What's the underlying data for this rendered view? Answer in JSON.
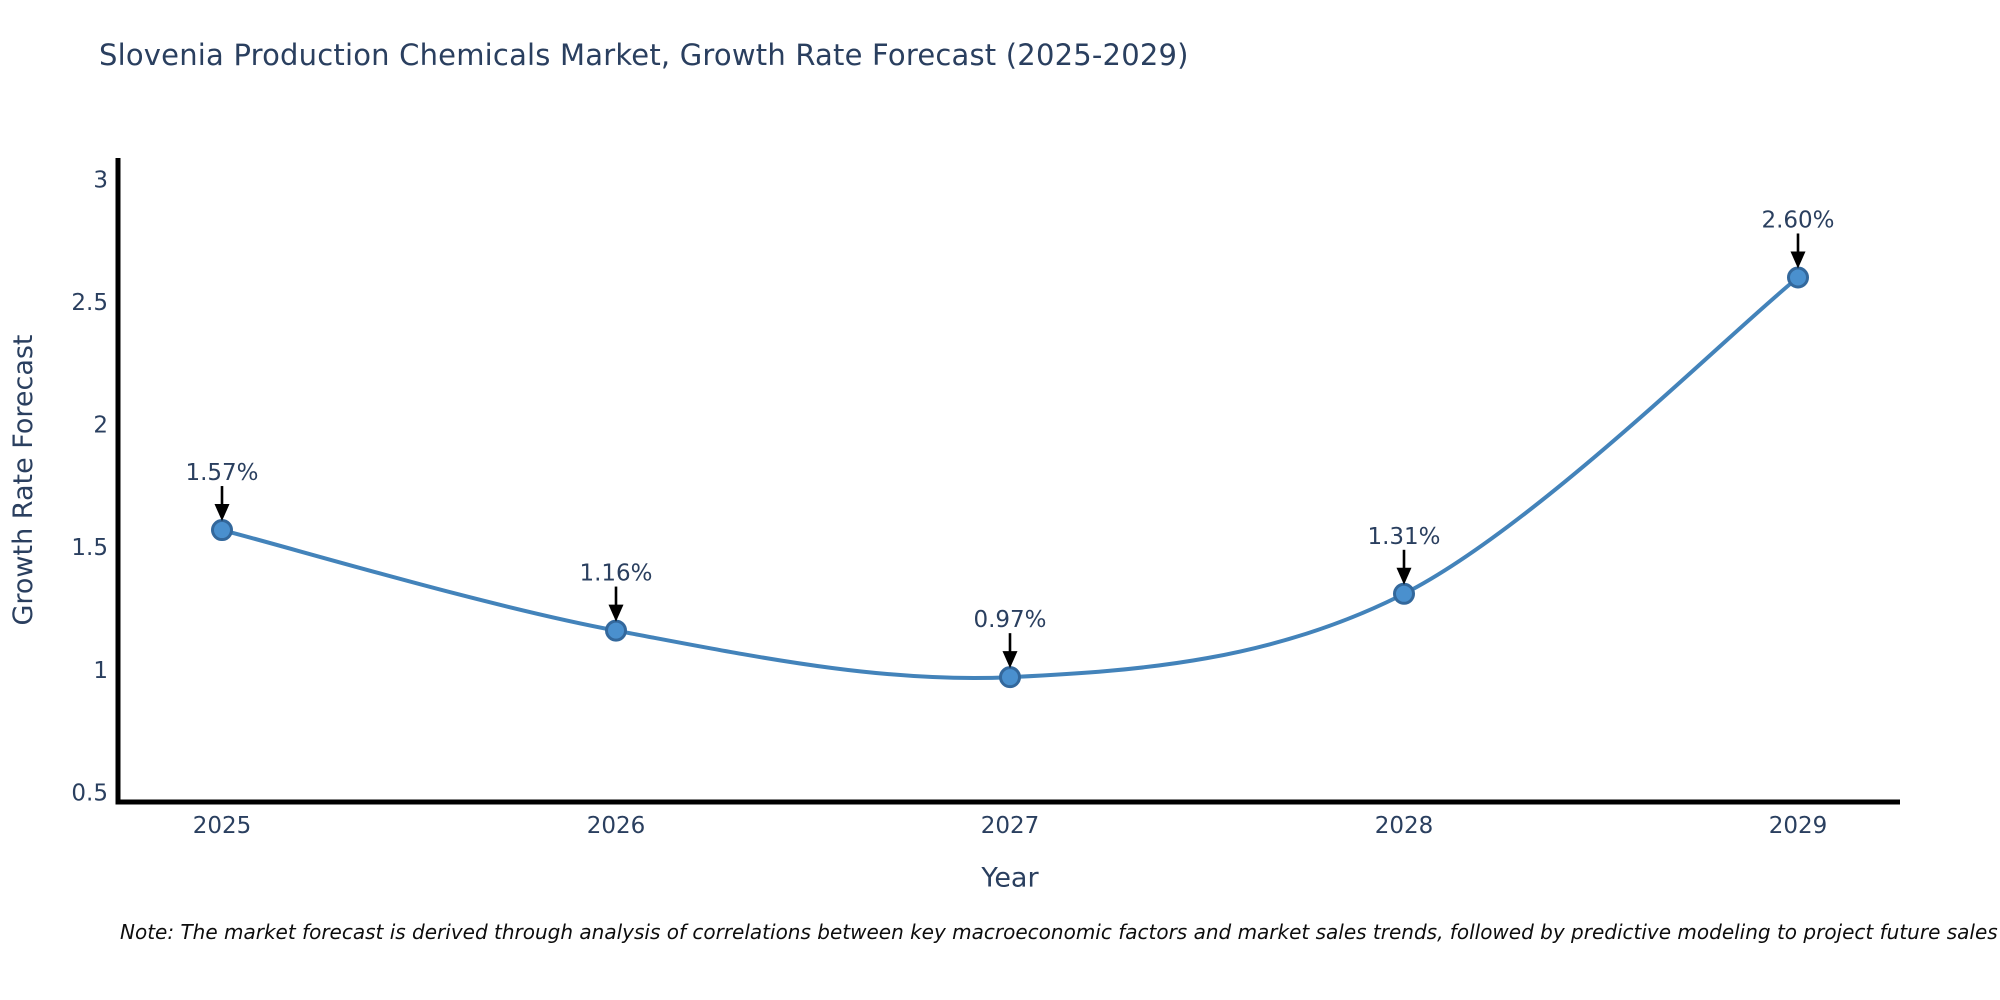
{
  "note": "Note: The market forecast is derived through analysis of correlations between key macroeconomic factors and market sales trends, followed by predictive modeling to project future sales",
  "chart_data": {
    "type": "line",
    "title": "Slovenia Production Chemicals Market, Growth Rate Forecast (2025-2029)",
    "x": [
      "2025",
      "2026",
      "2027",
      "2028",
      "2029"
    ],
    "values": [
      1.57,
      1.16,
      0.97,
      1.31,
      2.6
    ],
    "point_labels": [
      "1.57%",
      "1.16%",
      "0.97%",
      "1.31%",
      "2.60%"
    ],
    "xlabel": "Year",
    "ylabel": "Growth Rate Forecast",
    "ytick_labels": [
      "3",
      "2.5",
      "2",
      "1.5",
      "1",
      "0.5"
    ],
    "ytick_values": [
      3,
      2.5,
      2,
      1.5,
      1,
      0.5
    ],
    "ylim": [
      0.45,
      3.09
    ],
    "grid": false,
    "legend": "none",
    "line_shape": "spline",
    "annotation_style": "arrow-down-to-point",
    "colors": {
      "line": "#4383ba",
      "marker_fill": "#4a90ce",
      "marker_edge": "#33689c",
      "text": "#2a3f5f",
      "axis": "#000000",
      "arrow": "#000000",
      "note_text": "#0d0d0d",
      "background": "#ffffff"
    }
  }
}
